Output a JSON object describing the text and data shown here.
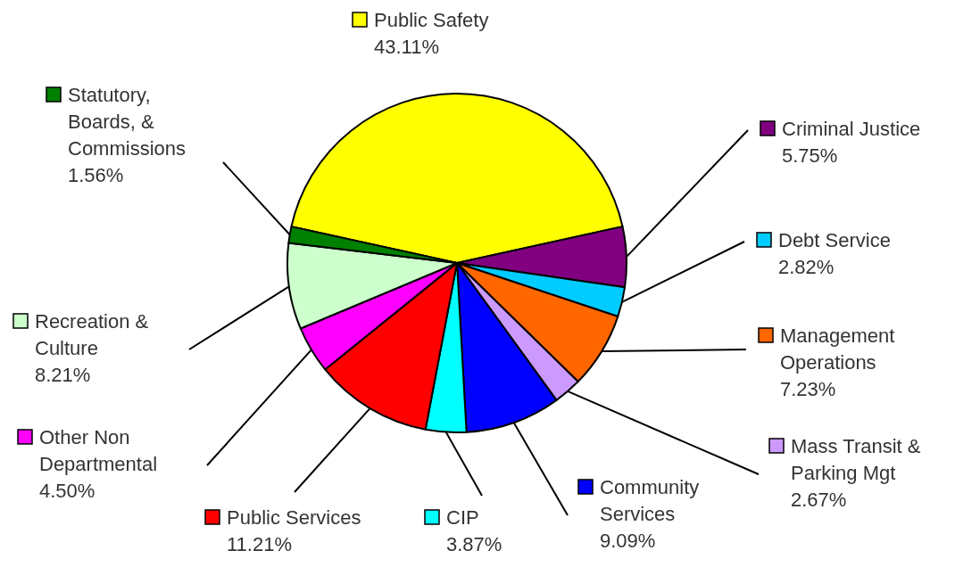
{
  "chart_data": {
    "type": "pie",
    "legend": "right",
    "categories": [
      "Public Safety",
      "Criminal Justice",
      "Debt Service",
      "Management Operations",
      "Mass Transit & Parking Mgt",
      "Community Services",
      "CIP",
      "Public Services",
      "Other Non Departmental",
      "Recreation & Culture",
      "Statutory, Boards, & Commissions"
    ],
    "values": [
      43.11,
      5.75,
      2.82,
      7.23,
      2.67,
      9.09,
      3.87,
      11.21,
      4.5,
      8.21,
      1.56
    ],
    "value_labels": [
      "43.11%",
      "5.75%",
      "2.82%",
      "7.23%",
      "2.67%",
      "9.09%",
      "3.87%",
      "11.21%",
      "4.50%",
      "8.21%",
      "1.56%"
    ],
    "colors": [
      "#ffff00",
      "#800080",
      "#00ccff",
      "#ff6600",
      "#cc99ff",
      "#0000ff",
      "#00ffff",
      "#ff0000",
      "#ff00ff",
      "#ccffcc",
      "#008000"
    ]
  }
}
